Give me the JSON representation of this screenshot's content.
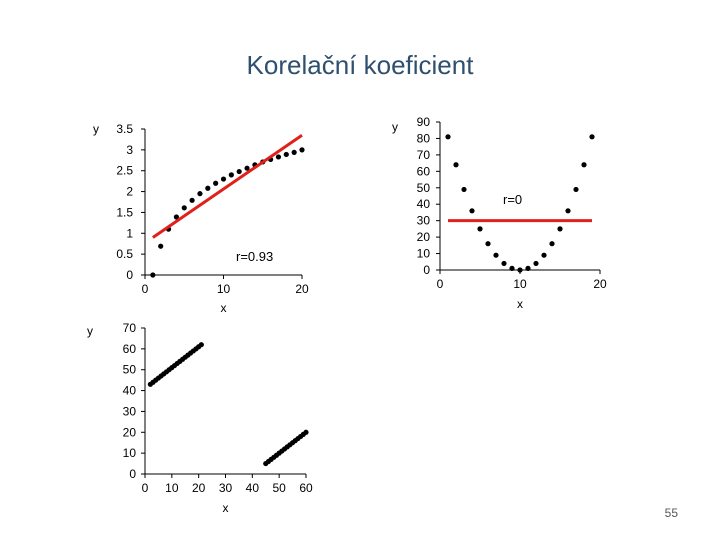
{
  "slide": {
    "title": "Korelační koeficient",
    "page_number": "55"
  },
  "chart_data": [
    {
      "type": "scatter",
      "xlabel": "x",
      "ylabel": "y",
      "xlim": [
        0,
        20
      ],
      "ylim": [
        0,
        3.5
      ],
      "xticks": [
        "0",
        "10",
        "20"
      ],
      "yticks": [
        "0",
        "0.5",
        "1",
        "1.5",
        "2",
        "2.5",
        "3",
        "3.5"
      ],
      "annotation": "r=0.93",
      "series": [
        {
          "marker_color": "#000000",
          "points": [
            [
              1,
              0
            ],
            [
              2,
              0.69
            ],
            [
              3,
              1.1
            ],
            [
              4,
              1.39
            ],
            [
              5,
              1.61
            ],
            [
              6,
              1.79
            ],
            [
              7,
              1.95
            ],
            [
              8,
              2.08
            ],
            [
              9,
              2.2
            ],
            [
              10,
              2.3
            ],
            [
              11,
              2.4
            ],
            [
              12,
              2.48
            ],
            [
              13,
              2.56
            ],
            [
              14,
              2.64
            ],
            [
              15,
              2.71
            ],
            [
              16,
              2.77
            ],
            [
              17,
              2.83
            ],
            [
              18,
              2.89
            ],
            [
              19,
              2.94
            ],
            [
              20,
              3.0
            ]
          ]
        },
        {
          "type": "line",
          "line_color": "#e0201b",
          "points": [
            [
              1,
              0.9
            ],
            [
              20,
              3.35
            ]
          ]
        }
      ]
    },
    {
      "type": "scatter",
      "xlabel": "x",
      "ylabel": "y",
      "xlim": [
        0,
        20
      ],
      "ylim": [
        0,
        90
      ],
      "xticks": [
        "0",
        "10",
        "20"
      ],
      "yticks": [
        "0",
        "10",
        "20",
        "30",
        "40",
        "50",
        "60",
        "70",
        "80",
        "90"
      ],
      "annotation": "r=0",
      "series": [
        {
          "marker_color": "#000000",
          "points": [
            [
              1,
              81
            ],
            [
              2,
              64
            ],
            [
              3,
              49
            ],
            [
              4,
              36
            ],
            [
              5,
              25
            ],
            [
              6,
              16
            ],
            [
              7,
              9
            ],
            [
              8,
              4
            ],
            [
              9,
              1
            ],
            [
              10,
              0
            ],
            [
              11,
              1
            ],
            [
              12,
              4
            ],
            [
              13,
              9
            ],
            [
              14,
              16
            ],
            [
              15,
              25
            ],
            [
              16,
              36
            ],
            [
              17,
              49
            ],
            [
              18,
              64
            ],
            [
              19,
              81
            ]
          ]
        },
        {
          "type": "line",
          "line_color": "#e0201b",
          "points": [
            [
              1,
              30
            ],
            [
              19,
              30
            ]
          ]
        }
      ]
    },
    {
      "type": "scatter",
      "xlabel": "x",
      "ylabel": "y",
      "xlim": [
        0,
        60
      ],
      "ylim": [
        0,
        70
      ],
      "xticks": [
        "0",
        "10",
        "20",
        "30",
        "40",
        "50",
        "60"
      ],
      "yticks": [
        "0",
        "10",
        "20",
        "30",
        "40",
        "50",
        "60",
        "70"
      ],
      "series": [
        {
          "marker_color": "#000000",
          "points": [
            [
              2,
              43
            ],
            [
              3,
              44
            ],
            [
              4,
              45
            ],
            [
              5,
              46
            ],
            [
              6,
              47
            ],
            [
              7,
              48
            ],
            [
              8,
              49
            ],
            [
              9,
              50
            ],
            [
              10,
              51
            ],
            [
              11,
              52
            ],
            [
              12,
              53
            ],
            [
              13,
              54
            ],
            [
              14,
              55
            ],
            [
              15,
              56
            ],
            [
              16,
              57
            ],
            [
              17,
              58
            ],
            [
              18,
              59
            ],
            [
              19,
              60
            ],
            [
              20,
              61
            ],
            [
              21,
              62
            ],
            [
              45,
              5
            ],
            [
              46,
              6
            ],
            [
              47,
              7
            ],
            [
              48,
              8
            ],
            [
              49,
              9
            ],
            [
              50,
              10
            ],
            [
              51,
              11
            ],
            [
              52,
              12
            ],
            [
              53,
              13
            ],
            [
              54,
              14
            ],
            [
              55,
              15
            ],
            [
              56,
              16
            ],
            [
              57,
              17
            ],
            [
              58,
              18
            ],
            [
              59,
              19
            ],
            [
              60,
              20
            ]
          ]
        }
      ]
    }
  ]
}
